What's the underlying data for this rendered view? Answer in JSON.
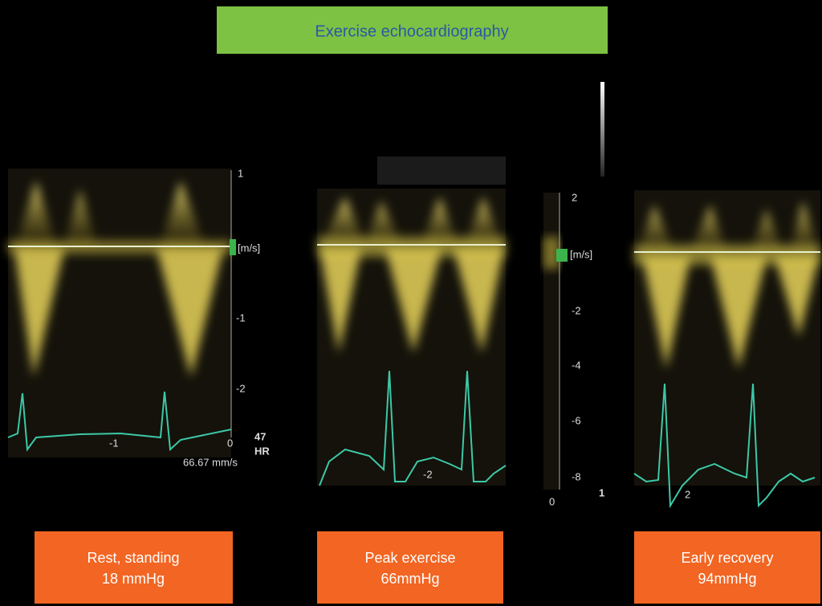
{
  "header": {
    "title": "Exercise echocardiography"
  },
  "panels": [
    {
      "caption_lines": [
        "Rest, standing",
        "18 mmHg"
      ],
      "scale_labels": [
        "1",
        "[m/s]",
        "-1",
        "-2",
        "0"
      ],
      "time_label": "-1",
      "sweep_speed": "66.67 mm/s",
      "heart_rate": "47",
      "heart_rate_label": "HR"
    },
    {
      "caption_lines": [
        "Peak exercise",
        "66mmHg"
      ],
      "time_label": "-2"
    },
    {
      "caption_lines": [
        "Early recovery",
        "94mmHg"
      ],
      "time_label": "2"
    }
  ],
  "shared_scale": {
    "labels": [
      "2",
      "[m/s]",
      "-2",
      "-4",
      "-6",
      "-8"
    ],
    "zero_label": "0",
    "marker_label": "1"
  }
}
